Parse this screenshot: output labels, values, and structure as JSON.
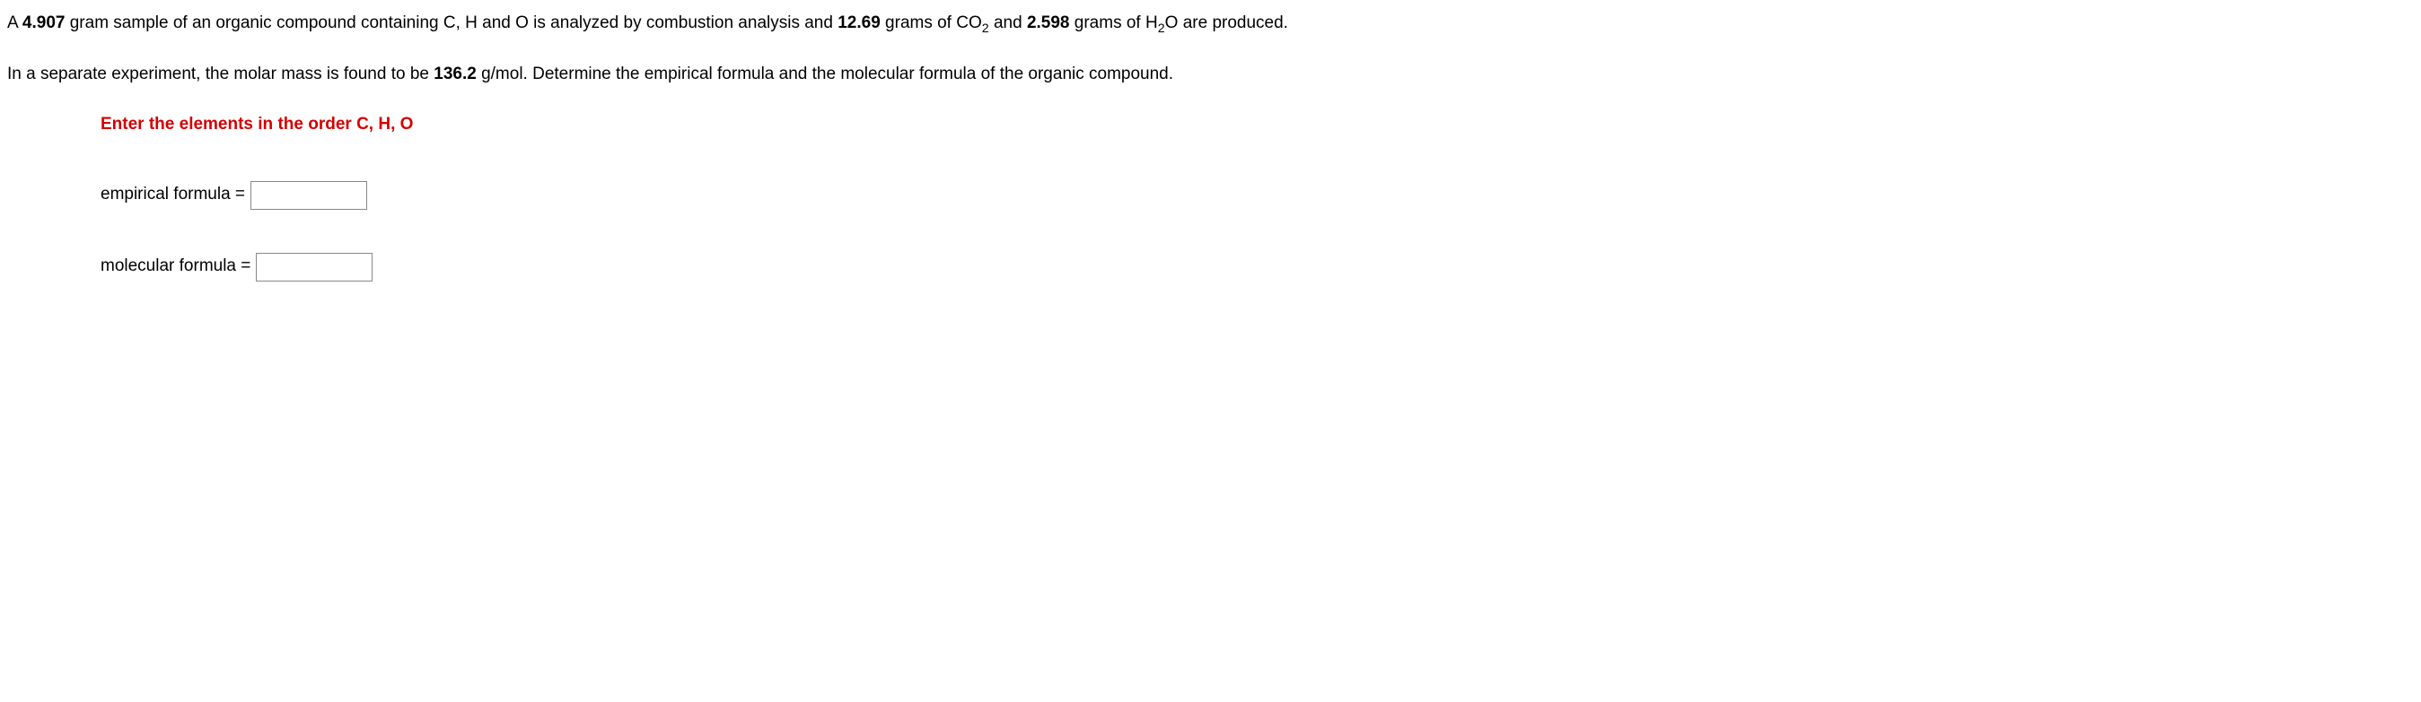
{
  "problem": {
    "p1_a": "A ",
    "sample_mass": "4.907",
    "p1_b": " gram sample of an organic compound containing C, H and O is analyzed by combustion analysis and ",
    "co2_mass": "12.69",
    "p1_c": " grams of CO",
    "co2_sub": "2",
    "p1_d": " and ",
    "h2o_mass": "2.598",
    "p1_e": " grams of H",
    "h2o_sub": "2",
    "p1_f": "O are produced.",
    "p2_a": "In a separate experiment, the molar mass is found to be ",
    "molar_mass": "136.2",
    "p2_b": " g/mol. Determine the empirical formula and the molecular formula of the organic compound."
  },
  "instruction": "Enter the elements in the order C, H, O",
  "fields": {
    "empirical_label": "empirical formula =",
    "empirical_value": "",
    "molecular_label": "molecular formula =",
    "molecular_value": ""
  }
}
